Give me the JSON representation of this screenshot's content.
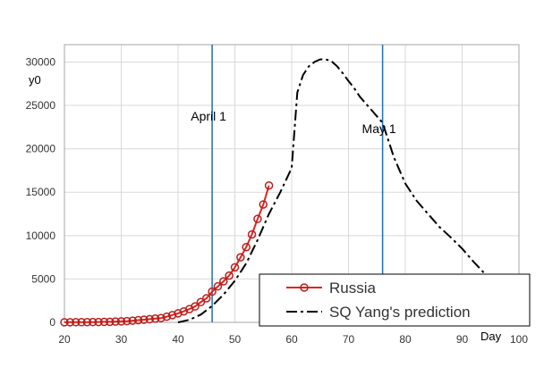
{
  "chart_data": {
    "type": "line",
    "title": "",
    "xlabel": "Day",
    "ylabel": "y0",
    "xlim": [
      20,
      100
    ],
    "ylim": [
      0,
      32000
    ],
    "xticks": [
      20,
      30,
      40,
      50,
      60,
      70,
      80,
      90,
      100
    ],
    "yticks": [
      0,
      5000,
      10000,
      15000,
      20000,
      25000,
      30000
    ],
    "grid": true,
    "legend_position": "bottom-right",
    "annotations": [
      {
        "label": "April 1",
        "x": 46
      },
      {
        "label": "May 1",
        "x": 76
      }
    ],
    "series": [
      {
        "name": "Russia",
        "style": "solid-with-circle-markers",
        "color": "#e3231f",
        "marker_color": "#b81f1c",
        "x": [
          20,
          21,
          22,
          23,
          24,
          25,
          26,
          27,
          28,
          29,
          30,
          31,
          32,
          33,
          34,
          35,
          36,
          37,
          38,
          39,
          40,
          41,
          42,
          43,
          44,
          45,
          46,
          47,
          48,
          49,
          50,
          51,
          52,
          53,
          54,
          55,
          56
        ],
        "values": [
          15,
          17,
          20,
          20,
          28,
          34,
          45,
          59,
          63,
          90,
          114,
          147,
          199,
          253,
          306,
          367,
          438,
          495,
          658,
          840,
          1036,
          1264,
          1534,
          1836,
          2337,
          2777,
          3548,
          4149,
          4731,
          5389,
          6343,
          7497,
          8672,
          10131,
          11917,
          13584,
          15770
        ]
      },
      {
        "name": "SQ Yang's prediction",
        "style": "dash-dot",
        "color": "#000000",
        "x": [
          40,
          42,
          44,
          46,
          48,
          50,
          52,
          54,
          56,
          58,
          60,
          61,
          62,
          63,
          64,
          65,
          66,
          67,
          68,
          69,
          70,
          71,
          72,
          74,
          76,
          78,
          80,
          82,
          84,
          86,
          88,
          90,
          92,
          94,
          96,
          98
        ],
        "values": [
          0,
          300,
          900,
          1900,
          3200,
          4800,
          6800,
          9500,
          12500,
          15000,
          17800,
          26500,
          28500,
          29500,
          30000,
          30300,
          30300,
          30100,
          29500,
          28700,
          27800,
          27000,
          26000,
          24500,
          23000,
          19000,
          16000,
          14000,
          12500,
          11000,
          9800,
          8500,
          7000,
          5600,
          4800,
          4000
        ]
      }
    ]
  },
  "colors": {
    "grid": "#d9d9d9",
    "annotation_line": "#1f6fb3",
    "axis": "#a6a6a6"
  }
}
